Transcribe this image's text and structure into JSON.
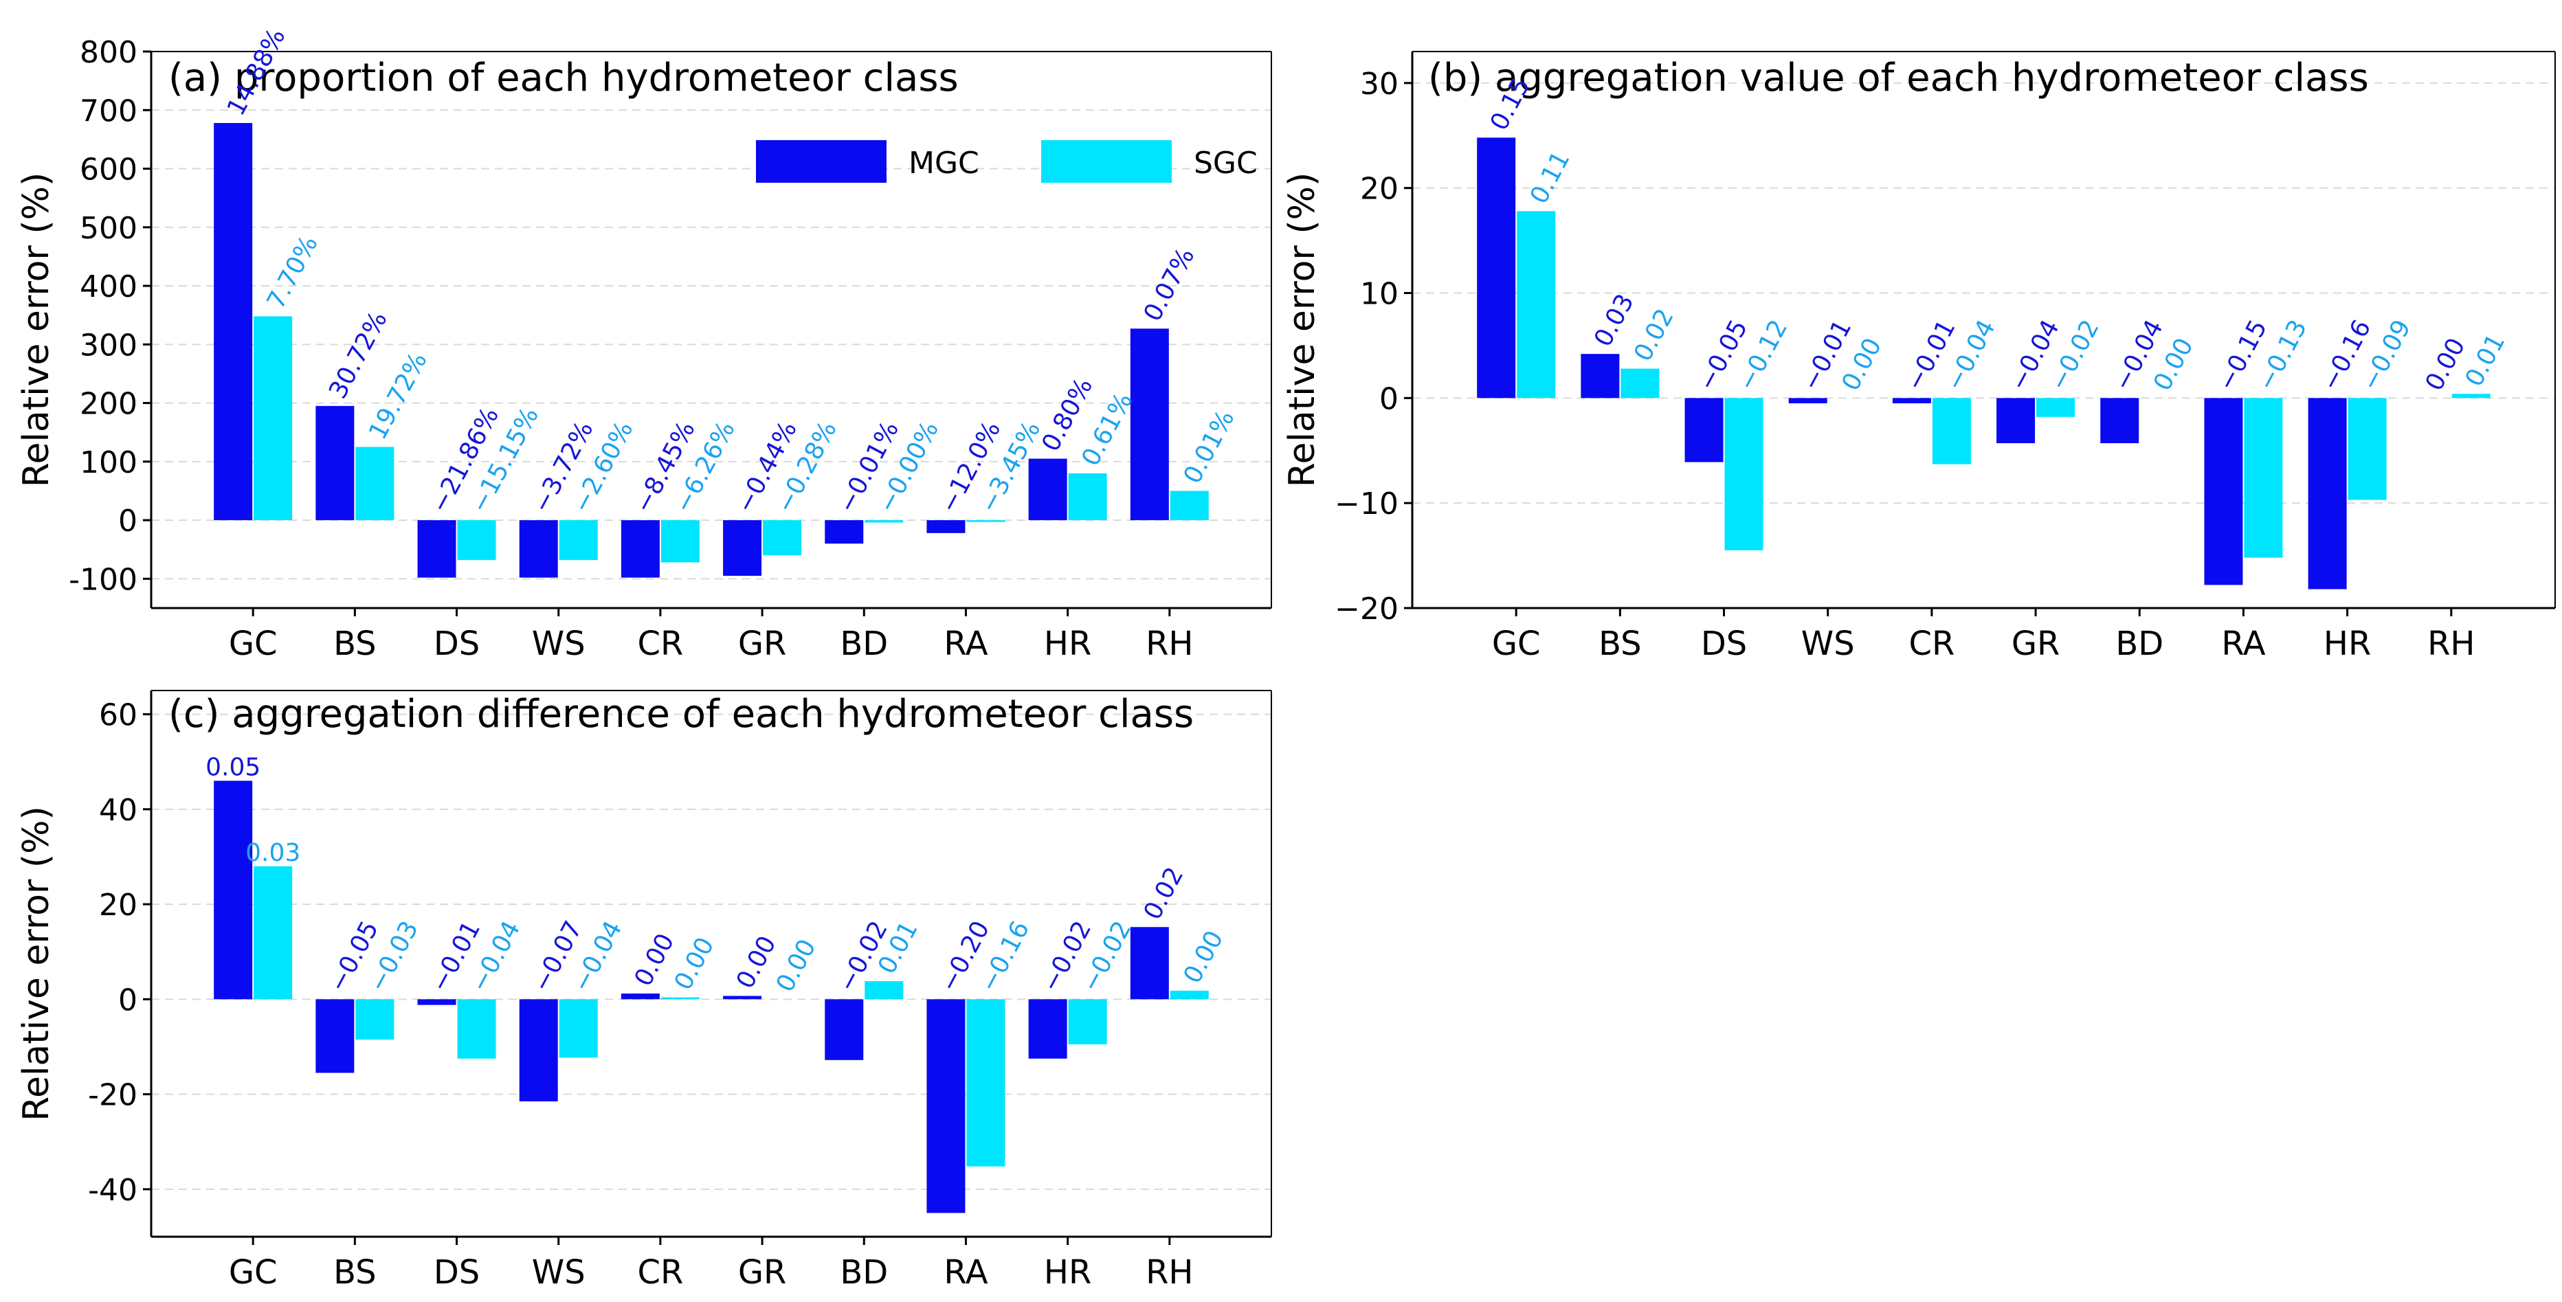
{
  "colors": {
    "mgc": "#0a0af0",
    "sgc": "#00e5ff",
    "mgc_label": "#1515d8",
    "sgc_label": "#1aa3f0",
    "axis": "#000000",
    "grid": "#d9d9d9"
  },
  "chart_data": [
    {
      "id": "a",
      "type": "bar",
      "title": "(a)  proportion of each hydrometeor class",
      "ylabel": "Relative error (%)",
      "xlabel": "",
      "ylim": [
        -150,
        800
      ],
      "yticks": [
        -100,
        0,
        100,
        200,
        300,
        400,
        500,
        600,
        700,
        800
      ],
      "ytick_labels": [
        "-100",
        "0",
        "100",
        "200",
        "300",
        "400",
        "500",
        "600",
        "700",
        "800"
      ],
      "grid": true,
      "legend": {
        "position": "top-right",
        "entries": [
          "MGC",
          "SGC"
        ]
      },
      "categories": [
        "GC",
        "BS",
        "DS",
        "WS",
        "CR",
        "GR",
        "BD",
        "RA",
        "HR",
        "RH"
      ],
      "series": [
        {
          "name": "MGC",
          "values": [
            678,
            195,
            -98,
            -98,
            -98,
            -95,
            -40,
            -22,
            105,
            327
          ],
          "labels": [
            "14.88%",
            "30.72%",
            "−21.86%",
            "−3.72%",
            "−8.45%",
            "−0.44%",
            "−0.01%",
            "−12.0%",
            "0.80%",
            "0.07%"
          ]
        },
        {
          "name": "SGC",
          "values": [
            348,
            125,
            -68,
            -68,
            -72,
            -60,
            -4,
            -3,
            80,
            50
          ],
          "labels": [
            "7.70%",
            "19.72%",
            "−15.15%",
            "−2.60%",
            "−6.26%",
            "−0.28%",
            "−0.00%",
            "−3.45%",
            "0.61%",
            "0.01%"
          ]
        }
      ]
    },
    {
      "id": "b",
      "type": "bar",
      "title": "(b) aggregation value of each hydrometeor class",
      "ylabel": "Relative error (%)",
      "xlabel": "",
      "ylim": [
        -20,
        33
      ],
      "yticks": [
        -20,
        -10,
        0,
        10,
        20,
        30
      ],
      "ytick_labels": [
        "−20",
        "−10",
        "0",
        "10",
        "20",
        "30"
      ],
      "grid": true,
      "categories": [
        "GC",
        "BS",
        "DS",
        "WS",
        "CR",
        "GR",
        "BD",
        "RA",
        "HR",
        "RH"
      ],
      "series": [
        {
          "name": "MGC",
          "values": [
            24.8,
            4.2,
            -6.1,
            -0.5,
            -0.5,
            -4.3,
            -4.3,
            -17.8,
            -18.2,
            0
          ],
          "labels": [
            "0.15",
            "0.03",
            "−0.05",
            "−0.01",
            "−0.01",
            "−0.04",
            "−0.04",
            "−0.15",
            "−0.16",
            "0.00"
          ]
        },
        {
          "name": "SGC",
          "values": [
            17.8,
            2.8,
            -14.5,
            0,
            -6.3,
            -1.8,
            0,
            -15.2,
            -9.7,
            0.4
          ],
          "labels": [
            "0.11",
            "0.02",
            "−0.12",
            "0.00",
            "−0.04",
            "−0.02",
            "0.00",
            "−0.13",
            "−0.09",
            "0.01"
          ]
        }
      ]
    },
    {
      "id": "c",
      "type": "bar",
      "title": "(c) aggregation difference of each hydrometeor class",
      "ylabel": "Relative error (%)",
      "xlabel": "",
      "ylim": [
        -50,
        65
      ],
      "yticks": [
        -40,
        -20,
        0,
        20,
        40,
        60
      ],
      "ytick_labels": [
        "-40",
        "-20",
        "0",
        "20",
        "40",
        "60"
      ],
      "grid": true,
      "categories": [
        "GC",
        "BS",
        "DS",
        "WS",
        "CR",
        "GR",
        "BD",
        "RA",
        "HR",
        "RH"
      ],
      "series": [
        {
          "name": "MGC",
          "values": [
            46,
            -15.5,
            -1.2,
            -21.5,
            1.2,
            0.7,
            -12.8,
            -45,
            -12.5,
            15.2
          ],
          "labels": [
            "0.05",
            "−0.05",
            "−0.01",
            "−0.07",
            "0.00",
            "0.00",
            "−0.02",
            "−0.20",
            "−0.02",
            "0.02"
          ]
        },
        {
          "name": "SGC",
          "values": [
            28,
            -8.5,
            -12.5,
            -12.3,
            0.4,
            0,
            3.8,
            -35.2,
            -9.5,
            1.8
          ],
          "labels": [
            "0.03",
            "−0.03",
            "−0.04",
            "−0.04",
            "0.00",
            "0.00",
            "0.01",
            "−0.16",
            "−0.02",
            "0.00"
          ]
        }
      ]
    }
  ]
}
